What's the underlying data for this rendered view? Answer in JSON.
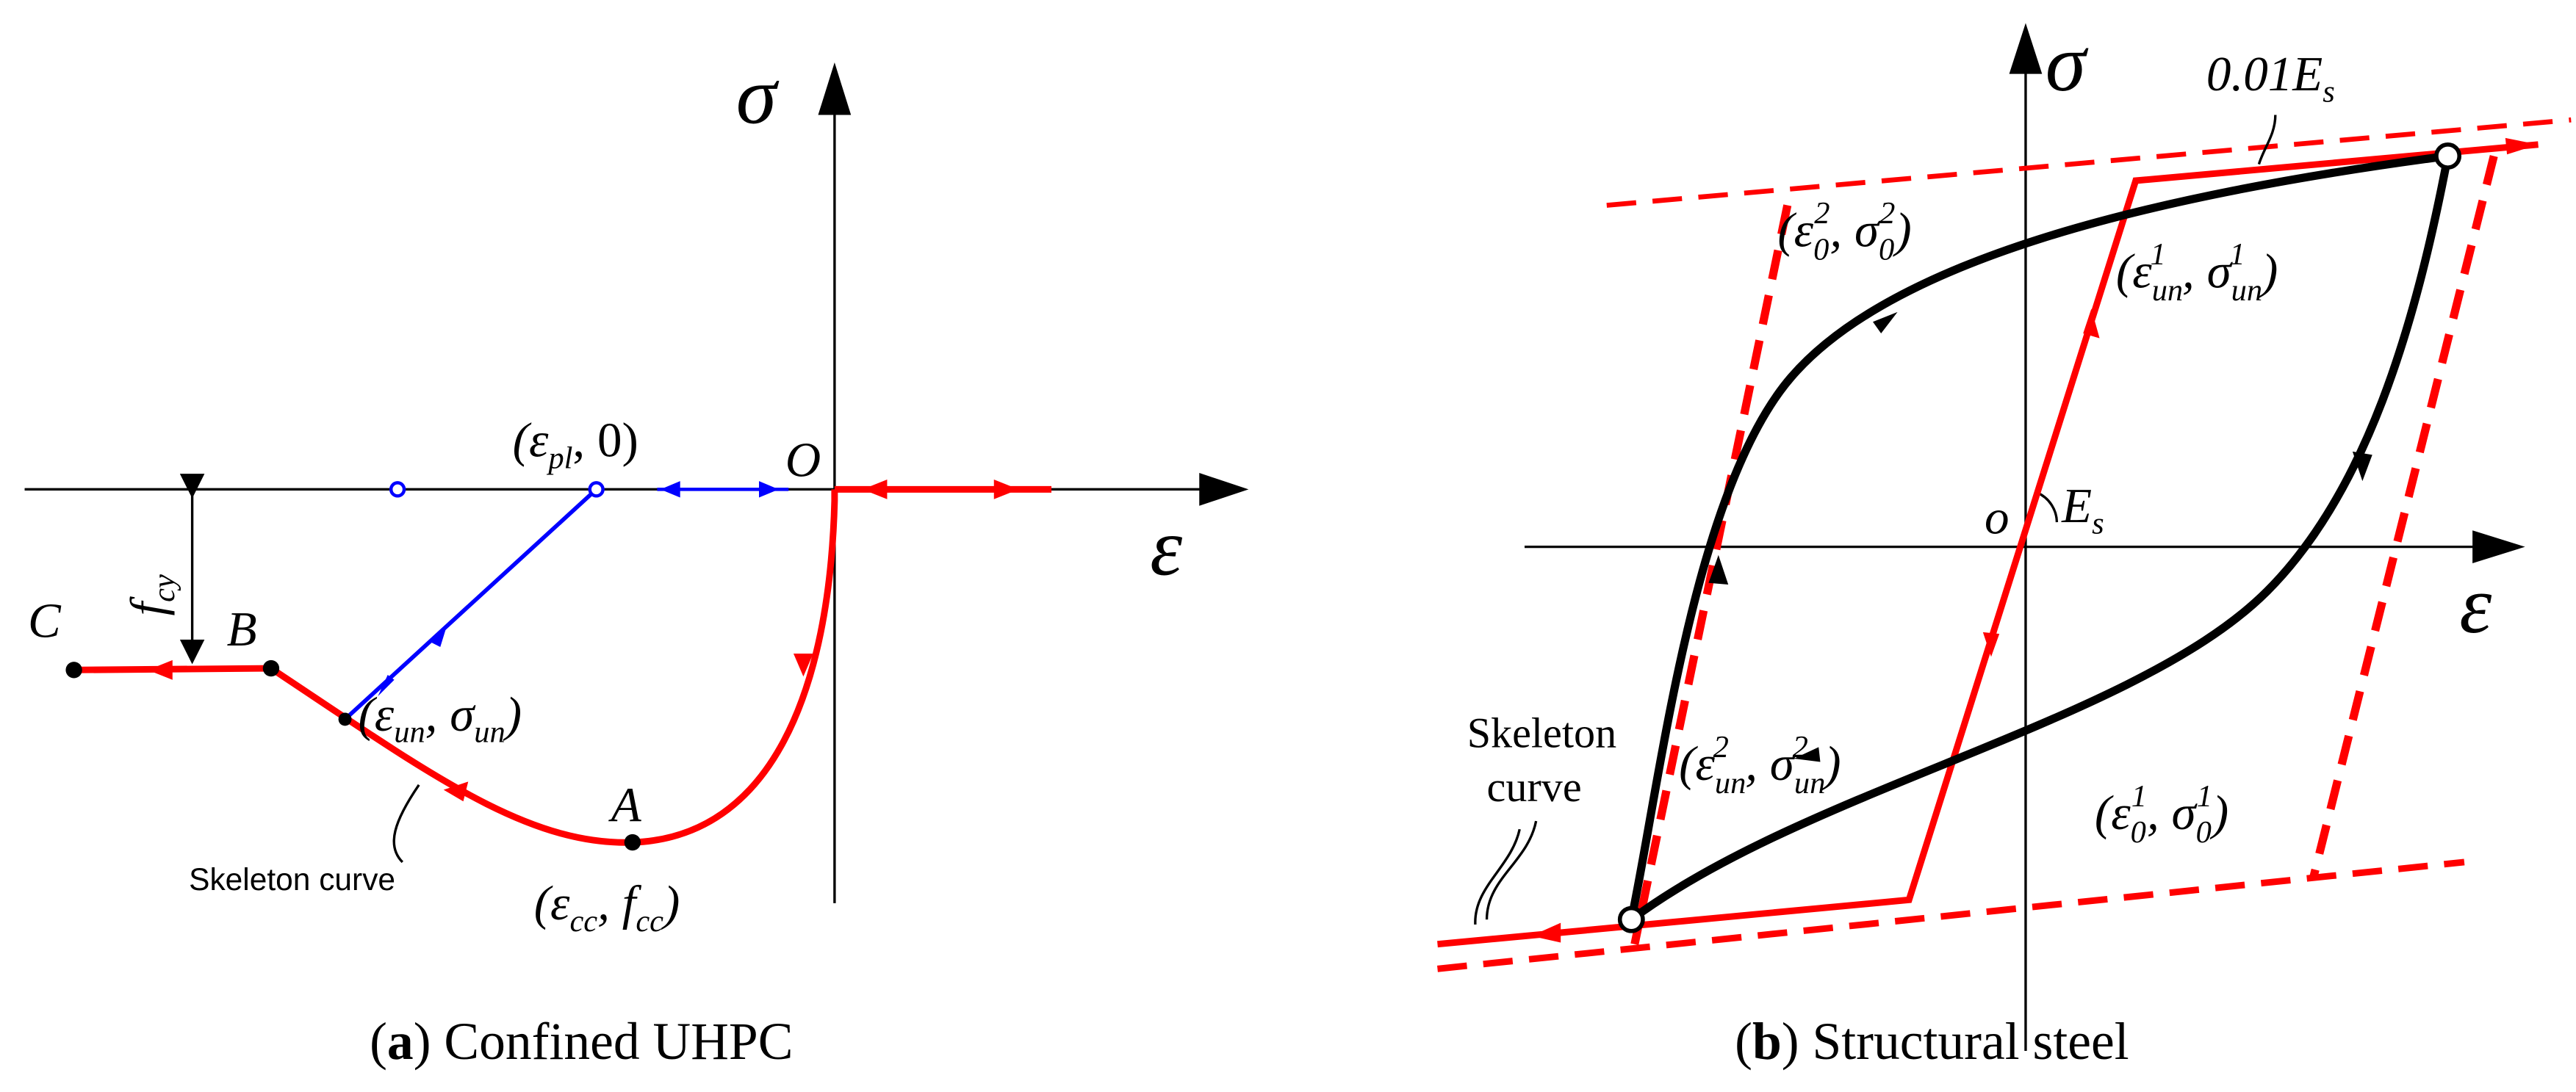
{
  "panel_a": {
    "sigma": "σ",
    "epsilon": "ε",
    "origin": "O",
    "point_a": "A",
    "point_b": "B",
    "point_c": "C",
    "fcy": [
      "f",
      "cy"
    ],
    "eps_pl": [
      "(ε",
      "pl",
      ", 0)"
    ],
    "eps_un": [
      "(ε",
      "un",
      ", σ",
      "un",
      ")"
    ],
    "eps_cc": [
      "(ε",
      "cc",
      ", f",
      "cc",
      ")"
    ],
    "skeleton": "Skeleton curve",
    "caption": [
      "(",
      "a",
      ") Confined UHPC"
    ]
  },
  "panel_b": {
    "sigma": "σ",
    "epsilon": "ε",
    "origin": "o",
    "es": [
      "E",
      "s"
    ],
    "slope": [
      "0.01E",
      "s"
    ],
    "eps0_2": [
      "(ε",
      "0",
      "2",
      ", σ",
      "0",
      "2",
      ")"
    ],
    "epsun_1": [
      "(ε",
      "un",
      "1",
      ", σ",
      "un",
      "1",
      ")"
    ],
    "epsun_2": [
      "(ε",
      "un",
      "2",
      ", σ",
      "un",
      "2",
      ")"
    ],
    "eps0_1": [
      "(ε",
      "0",
      "1",
      ", σ",
      "0",
      "1",
      ")"
    ],
    "skeleton": [
      "Skeleton",
      "curve"
    ],
    "caption": [
      "(",
      "b",
      ") Structural steel"
    ]
  }
}
